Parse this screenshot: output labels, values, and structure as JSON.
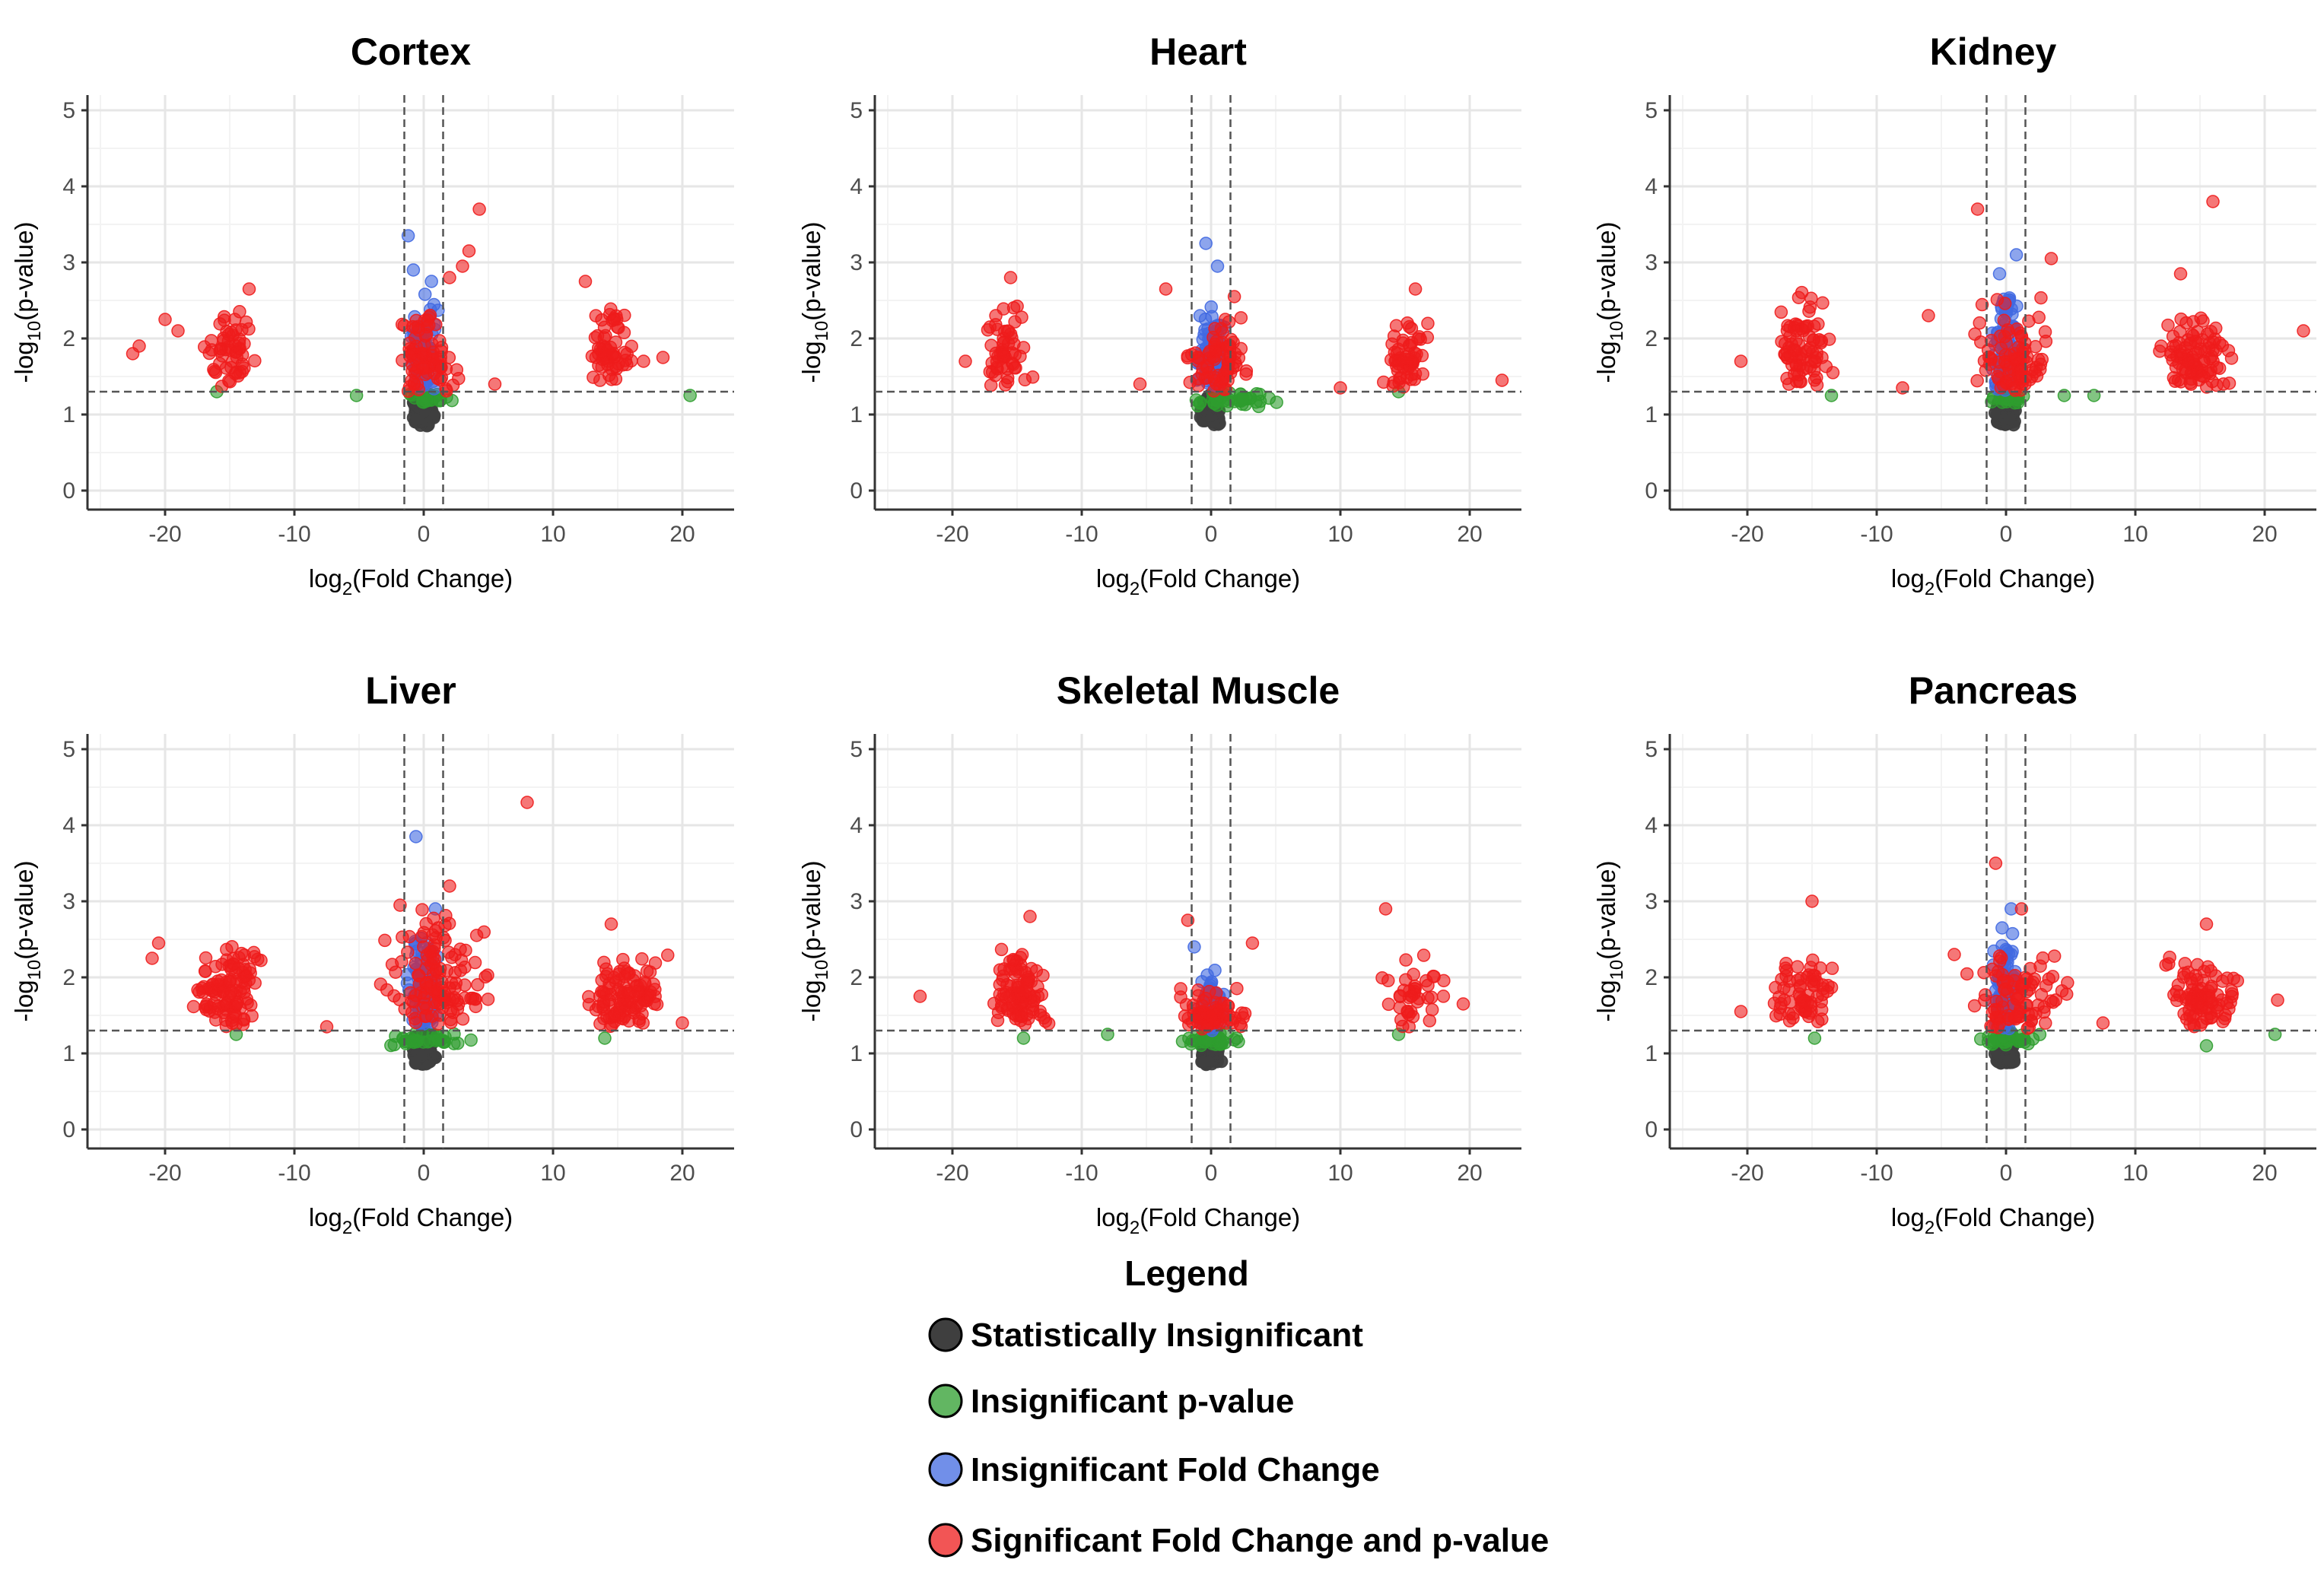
{
  "chart_data": {
    "type": "scatter",
    "plot_kind": "volcano",
    "xlabel": "log2(Fold Change)",
    "xlabel_main": "log",
    "xlabel_sub": "2",
    "xlabel_rest": "(Fold Change)",
    "ylabel": "-log10(p-value)",
    "ylabel_main": "-log",
    "ylabel_sub": "10",
    "ylabel_rest": "(p-value)",
    "xlim": [
      -26,
      24
    ],
    "ylim": [
      -0.25,
      5.2
    ],
    "xticks": [
      -20,
      -10,
      0,
      10,
      20
    ],
    "yticks": [
      0,
      1,
      2,
      3,
      4,
      5
    ],
    "thresholds": {
      "fold_change": [
        -1.5,
        1.5
      ],
      "p_value": 1.3
    },
    "colors": {
      "statistically_insignificant": "#3f3f3f",
      "insignificant_p_value": "#2e9d2e",
      "insignificant_fold_change": "#4169e1",
      "significant": "#ee1c1c",
      "grid_major": "#e6e6e6",
      "grid_minor": "#f3f3f3",
      "axis": "#333333",
      "threshold_line": "#555555"
    },
    "legend": {
      "title": "Legend",
      "position": "bottom-center",
      "items": [
        {
          "label": "Statistically Insignificant",
          "category": "statistically_insignificant"
        },
        {
          "label": "Insignificant p-value",
          "category": "insignificant_p_value"
        },
        {
          "label": "Insignificant Fold Change",
          "category": "insignificant_fold_change"
        },
        {
          "label": "Significant Fold Change and p-value",
          "category": "significant"
        }
      ]
    },
    "panels": [
      {
        "title": "Cortex",
        "clusters": [
          {
            "category": "statistically_insignificant",
            "x": [
              -1.0,
              1.0
            ],
            "y": [
              0.85,
              1.3
            ],
            "n": 130
          },
          {
            "category": "insignificant_fold_change",
            "x": [
              -1.4,
              1.4
            ],
            "y": [
              1.3,
              2.6
            ],
            "n": 95
          },
          {
            "category": "insignificant_p_value",
            "x": [
              -2.2,
              2.5
            ],
            "y": [
              1.15,
              1.3
            ],
            "n": 24
          },
          {
            "category": "significant",
            "x": [
              -2.8,
              3.2
            ],
            "y": [
              1.3,
              2.5
            ],
            "n": 80
          },
          {
            "category": "significant",
            "x": [
              -17.5,
              -12.5
            ],
            "y": [
              1.35,
              2.55
            ],
            "n": 55
          },
          {
            "category": "significant",
            "x": [
              12.5,
              16.5
            ],
            "y": [
              1.35,
              2.6
            ],
            "n": 60
          }
        ],
        "points": [
          {
            "category": "significant",
            "x": -22.5,
            "y": 1.8
          },
          {
            "category": "significant",
            "x": -22.0,
            "y": 1.9
          },
          {
            "category": "significant",
            "x": -20.0,
            "y": 2.25
          },
          {
            "category": "significant",
            "x": -19.0,
            "y": 2.1
          },
          {
            "category": "significant",
            "x": -13.5,
            "y": 2.65
          },
          {
            "category": "significant",
            "x": 4.3,
            "y": 3.7
          },
          {
            "category": "significant",
            "x": 3.5,
            "y": 3.15
          },
          {
            "category": "significant",
            "x": 3.0,
            "y": 2.95
          },
          {
            "category": "significant",
            "x": 2.0,
            "y": 2.8
          },
          {
            "category": "significant",
            "x": 5.5,
            "y": 1.4
          },
          {
            "category": "significant",
            "x": 17.0,
            "y": 1.7
          },
          {
            "category": "significant",
            "x": 18.5,
            "y": 1.75
          },
          {
            "category": "significant",
            "x": 12.5,
            "y": 2.75
          },
          {
            "category": "insignificant_fold_change",
            "x": -1.2,
            "y": 3.35
          },
          {
            "category": "insignificant_fold_change",
            "x": -0.8,
            "y": 2.9
          },
          {
            "category": "insignificant_fold_change",
            "x": 0.6,
            "y": 2.75
          },
          {
            "category": "insignificant_p_value",
            "x": -5.2,
            "y": 1.25
          },
          {
            "category": "insignificant_p_value",
            "x": 20.6,
            "y": 1.25
          },
          {
            "category": "insignificant_p_value",
            "x": -16.0,
            "y": 1.3
          }
        ]
      },
      {
        "title": "Heart",
        "clusters": [
          {
            "category": "statistically_insignificant",
            "x": [
              -1.0,
              1.0
            ],
            "y": [
              0.85,
              1.3
            ],
            "n": 130
          },
          {
            "category": "insignificant_fold_change",
            "x": [
              -1.4,
              1.4
            ],
            "y": [
              1.3,
              2.5
            ],
            "n": 95
          },
          {
            "category": "insignificant_p_value",
            "x": [
              -2.5,
              6.5
            ],
            "y": [
              1.1,
              1.3
            ],
            "n": 40
          },
          {
            "category": "significant",
            "x": [
              -3.0,
              4.0
            ],
            "y": [
              1.3,
              2.3
            ],
            "n": 75
          },
          {
            "category": "significant",
            "x": [
              -18.5,
              -13.0
            ],
            "y": [
              1.35,
              2.6
            ],
            "n": 55
          },
          {
            "category": "significant",
            "x": [
              12.5,
              17.5
            ],
            "y": [
              1.35,
              2.35
            ],
            "n": 60
          }
        ],
        "points": [
          {
            "category": "significant",
            "x": -15.5,
            "y": 2.8
          },
          {
            "category": "significant",
            "x": -19.0,
            "y": 1.7
          },
          {
            "category": "significant",
            "x": -3.5,
            "y": 2.65
          },
          {
            "category": "significant",
            "x": 1.8,
            "y": 2.55
          },
          {
            "category": "significant",
            "x": 15.8,
            "y": 2.65
          },
          {
            "category": "significant",
            "x": 22.5,
            "y": 1.45
          },
          {
            "category": "significant",
            "x": 10.0,
            "y": 1.35
          },
          {
            "category": "significant",
            "x": -5.5,
            "y": 1.4
          },
          {
            "category": "insignificant_fold_change",
            "x": -0.4,
            "y": 3.25
          },
          {
            "category": "insignificant_fold_change",
            "x": 0.5,
            "y": 2.95
          },
          {
            "category": "insignificant_p_value",
            "x": 14.5,
            "y": 1.3
          }
        ]
      },
      {
        "title": "Kidney",
        "clusters": [
          {
            "category": "statistically_insignificant",
            "x": [
              -1.0,
              1.0
            ],
            "y": [
              0.85,
              1.3
            ],
            "n": 130
          },
          {
            "category": "insignificant_fold_change",
            "x": [
              -1.4,
              1.4
            ],
            "y": [
              1.3,
              2.6
            ],
            "n": 100
          },
          {
            "category": "insignificant_p_value",
            "x": [
              -2.2,
              2.5
            ],
            "y": [
              1.15,
              1.3
            ],
            "n": 20
          },
          {
            "category": "significant",
            "x": [
              -3.0,
              4.0
            ],
            "y": [
              1.3,
              2.6
            ],
            "n": 90
          },
          {
            "category": "significant",
            "x": [
              -19.0,
              -12.5
            ],
            "y": [
              1.35,
              2.7
            ],
            "n": 80
          },
          {
            "category": "significant",
            "x": [
              11.5,
              18.0
            ],
            "y": [
              1.35,
              2.4
            ],
            "n": 95
          }
        ],
        "points": [
          {
            "category": "significant",
            "x": -2.2,
            "y": 3.7
          },
          {
            "category": "significant",
            "x": 16.0,
            "y": 3.8
          },
          {
            "category": "significant",
            "x": 3.5,
            "y": 3.05
          },
          {
            "category": "significant",
            "x": 23.0,
            "y": 2.1
          },
          {
            "category": "significant",
            "x": -20.5,
            "y": 1.7
          },
          {
            "category": "significant",
            "x": -6.0,
            "y": 2.3
          },
          {
            "category": "significant",
            "x": -8.0,
            "y": 1.35
          },
          {
            "category": "significant",
            "x": 13.5,
            "y": 2.85
          },
          {
            "category": "insignificant_fold_change",
            "x": 0.8,
            "y": 3.1
          },
          {
            "category": "insignificant_fold_change",
            "x": -0.5,
            "y": 2.85
          },
          {
            "category": "insignificant_p_value",
            "x": 6.8,
            "y": 1.25
          },
          {
            "category": "insignificant_p_value",
            "x": 4.5,
            "y": 1.25
          },
          {
            "category": "insignificant_p_value",
            "x": -13.5,
            "y": 1.25
          }
        ]
      },
      {
        "title": "Liver",
        "clusters": [
          {
            "category": "statistically_insignificant",
            "x": [
              -1.0,
              1.0
            ],
            "y": [
              0.85,
              1.3
            ],
            "n": 130
          },
          {
            "category": "insignificant_fold_change",
            "x": [
              -1.4,
              1.4
            ],
            "y": [
              1.3,
              2.7
            ],
            "n": 100
          },
          {
            "category": "insignificant_p_value",
            "x": [
              -3.5,
              4.5
            ],
            "y": [
              1.1,
              1.3
            ],
            "n": 35
          },
          {
            "category": "significant",
            "x": [
              -4.0,
              6.0
            ],
            "y": [
              1.3,
              3.0
            ],
            "n": 130
          },
          {
            "category": "significant",
            "x": [
              -18.5,
              -12.0
            ],
            "y": [
              1.35,
              2.55
            ],
            "n": 110
          },
          {
            "category": "significant",
            "x": [
              11.5,
              19.5
            ],
            "y": [
              1.35,
              2.4
            ],
            "n": 110
          }
        ],
        "points": [
          {
            "category": "significant",
            "x": 8.0,
            "y": 4.3
          },
          {
            "category": "significant",
            "x": 2.0,
            "y": 3.2
          },
          {
            "category": "significant",
            "x": -21.0,
            "y": 2.25
          },
          {
            "category": "significant",
            "x": -20.5,
            "y": 2.45
          },
          {
            "category": "significant",
            "x": -7.5,
            "y": 1.35
          },
          {
            "category": "significant",
            "x": 14.5,
            "y": 2.7
          },
          {
            "category": "significant",
            "x": 20.0,
            "y": 1.4
          },
          {
            "category": "insignificant_fold_change",
            "x": -0.6,
            "y": 3.85
          },
          {
            "category": "insignificant_fold_change",
            "x": 0.9,
            "y": 2.9
          },
          {
            "category": "insignificant_p_value",
            "x": 14.0,
            "y": 1.2
          },
          {
            "category": "insignificant_p_value",
            "x": -14.5,
            "y": 1.25
          }
        ]
      },
      {
        "title": "Skeletal Muscle",
        "clusters": [
          {
            "category": "statistically_insignificant",
            "x": [
              -1.0,
              1.0
            ],
            "y": [
              0.85,
              1.3
            ],
            "n": 120
          },
          {
            "category": "insignificant_fold_change",
            "x": [
              -1.4,
              1.4
            ],
            "y": [
              1.3,
              2.2
            ],
            "n": 70
          },
          {
            "category": "insignificant_p_value",
            "x": [
              -2.5,
              3.0
            ],
            "y": [
              1.1,
              1.3
            ],
            "n": 30
          },
          {
            "category": "significant",
            "x": [
              -4.0,
              3.5
            ],
            "y": [
              1.3,
              1.9
            ],
            "n": 70
          },
          {
            "category": "significant",
            "x": [
              -17.5,
              -12.0
            ],
            "y": [
              1.35,
              2.45
            ],
            "n": 100
          },
          {
            "category": "significant",
            "x": [
              12.5,
              18.5
            ],
            "y": [
              1.35,
              2.35
            ],
            "n": 40
          }
        ],
        "points": [
          {
            "category": "significant",
            "x": -1.8,
            "y": 2.75
          },
          {
            "category": "significant",
            "x": 3.2,
            "y": 2.45
          },
          {
            "category": "significant",
            "x": -14.0,
            "y": 2.8
          },
          {
            "category": "significant",
            "x": -22.5,
            "y": 1.75
          },
          {
            "category": "significant",
            "x": 13.5,
            "y": 2.9
          },
          {
            "category": "significant",
            "x": 19.5,
            "y": 1.65
          },
          {
            "category": "insignificant_fold_change",
            "x": -1.3,
            "y": 2.4
          },
          {
            "category": "insignificant_p_value",
            "x": -8.0,
            "y": 1.25
          },
          {
            "category": "insignificant_p_value",
            "x": -14.5,
            "y": 1.2
          },
          {
            "category": "insignificant_p_value",
            "x": 14.5,
            "y": 1.25
          }
        ]
      },
      {
        "title": "Pancreas",
        "clusters": [
          {
            "category": "statistically_insignificant",
            "x": [
              -1.0,
              1.0
            ],
            "y": [
              0.85,
              1.3
            ],
            "n": 130
          },
          {
            "category": "insignificant_fold_change",
            "x": [
              -1.4,
              1.4
            ],
            "y": [
              1.3,
              2.6
            ],
            "n": 95
          },
          {
            "category": "insignificant_p_value",
            "x": [
              -3.5,
              3.5
            ],
            "y": [
              1.1,
              1.3
            ],
            "n": 35
          },
          {
            "category": "significant",
            "x": [
              -4.0,
              5.5
            ],
            "y": [
              1.3,
              2.4
            ],
            "n": 90
          },
          {
            "category": "significant",
            "x": [
              -19.0,
              -12.5
            ],
            "y": [
              1.35,
              2.35
            ],
            "n": 70
          },
          {
            "category": "significant",
            "x": [
              11.5,
              19.0
            ],
            "y": [
              1.35,
              2.35
            ],
            "n": 90
          }
        ],
        "points": [
          {
            "category": "significant",
            "x": -0.8,
            "y": 3.5
          },
          {
            "category": "significant",
            "x": -15.0,
            "y": 3.0
          },
          {
            "category": "significant",
            "x": 1.2,
            "y": 2.9
          },
          {
            "category": "significant",
            "x": 7.5,
            "y": 1.4
          },
          {
            "category": "significant",
            "x": 15.5,
            "y": 2.7
          },
          {
            "category": "significant",
            "x": 21.0,
            "y": 1.7
          },
          {
            "category": "significant",
            "x": -20.5,
            "y": 1.55
          },
          {
            "category": "significant",
            "x": -4.0,
            "y": 2.3
          },
          {
            "category": "insignificant_fold_change",
            "x": 0.4,
            "y": 2.9
          },
          {
            "category": "insignificant_fold_change",
            "x": -0.3,
            "y": 2.65
          },
          {
            "category": "insignificant_p_value",
            "x": 15.5,
            "y": 1.1
          },
          {
            "category": "insignificant_p_value",
            "x": 20.8,
            "y": 1.25
          },
          {
            "category": "insignificant_p_value",
            "x": -14.8,
            "y": 1.2
          }
        ]
      }
    ]
  }
}
